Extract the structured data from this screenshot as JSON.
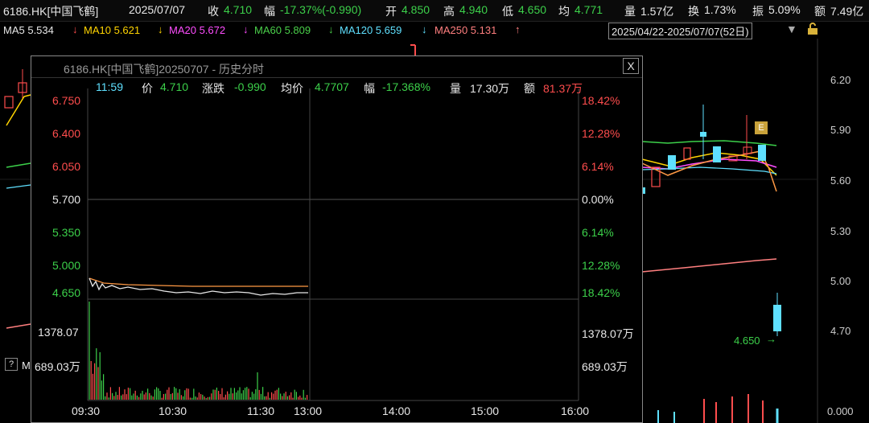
{
  "header": {
    "symbol": "6186.HK[中国飞鹤]",
    "date": "2025/07/07",
    "close_label": "收",
    "close": "4.710",
    "change_label": "幅",
    "change": "-17.37%(-0.990)",
    "open_label": "开",
    "open": "4.850",
    "high_label": "高",
    "high": "4.940",
    "low_label": "低",
    "low": "4.650",
    "avg_label": "均",
    "avg": "4.771",
    "volume_label": "量",
    "volume": "1.57亿",
    "turnover_label": "换",
    "turnover": "1.73%",
    "amplitude_label": "振",
    "amplitude": "5.09%",
    "amount_label": "额",
    "amount": "7.49亿"
  },
  "ma_bar": {
    "ma5": "MA5 5.534",
    "ma5_arrow": "↓",
    "ma10": "MA10 5.621",
    "ma10_arrow": "↓",
    "ma20": "MA20 5.672",
    "ma20_arrow": "↓",
    "ma60": "MA60 5.809",
    "ma60_arrow": "↓",
    "ma120": "MA120 5.659",
    "ma120_arrow": "↓",
    "ma250": "MA250 5.131",
    "ma250_arrow": "↑",
    "period": "2025/04/22-2025/07/07(52日)"
  },
  "main_axis": [
    "6.20",
    "5.90",
    "5.60",
    "5.30",
    "5.00",
    "4.70",
    "0.000"
  ],
  "low_marker": "4.650",
  "event_badge": "E",
  "left_stub": {
    "question": "?",
    "m": "M"
  },
  "popup": {
    "title": "6186.HK[中国飞鹤]20250707 - 历史分时",
    "close_btn": "X",
    "info": {
      "time": "11:59",
      "price_label": "价",
      "price": "4.710",
      "change_label": "涨跌",
      "change": "-0.990",
      "avg_label": "均价",
      "avg": "4.7707",
      "pct_label": "幅",
      "pct": "-17.368%",
      "vol_label": "量",
      "vol": "17.30万",
      "amt_label": "额",
      "amt": "81.37万"
    },
    "price_ticks": [
      "6.750",
      "6.400",
      "6.050",
      "5.700",
      "5.350",
      "5.000",
      "4.650"
    ],
    "pct_ticks": [
      "18.42%",
      "12.28%",
      "6.14%",
      "0.00%",
      "6.14%",
      "12.28%",
      "18.42%"
    ],
    "vol_left": [
      "1378.07",
      "689.03万"
    ],
    "vol_right": [
      "1378.07万",
      "689.03万"
    ],
    "time_ticks": [
      "09:30",
      "10:30",
      "11:30",
      "13:00",
      "14:00",
      "15:00",
      "16:00"
    ]
  }
}
